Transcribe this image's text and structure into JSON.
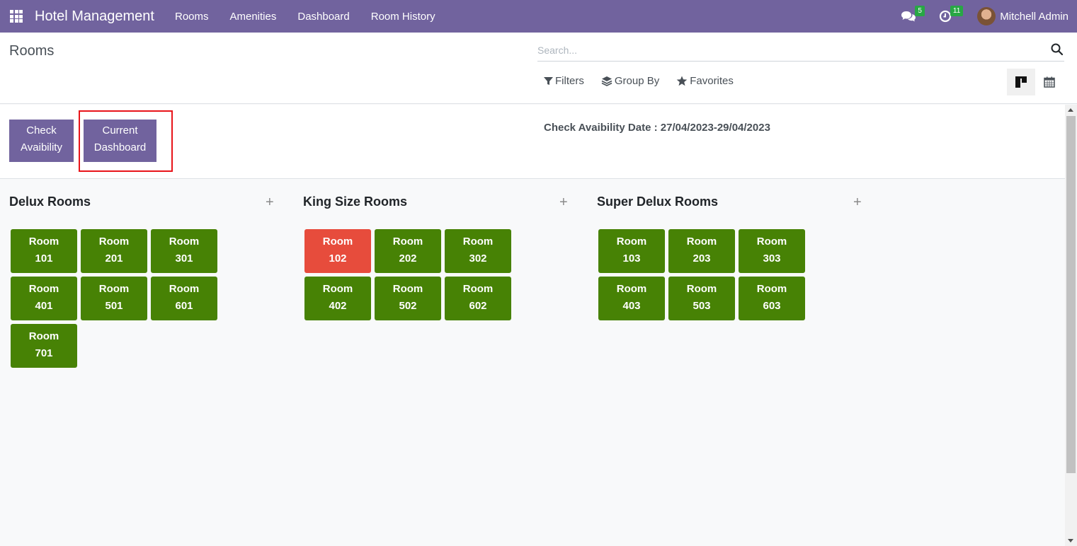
{
  "navbar": {
    "brand": "Hotel Management",
    "menu": [
      "Rooms",
      "Amenities",
      "Dashboard",
      "Room History"
    ],
    "messages_count": "5",
    "activities_count": "11",
    "user_name": "Mitchell Admin"
  },
  "control_panel": {
    "breadcrumb": "Rooms",
    "search_placeholder": "Search...",
    "filters_label": "Filters",
    "group_by_label": "Group By",
    "favorites_label": "Favorites"
  },
  "dashboard": {
    "check_button_line1": "Check",
    "check_button_line2": "Avaibility",
    "current_button_line1": "Current",
    "current_button_line2": "Dashboard",
    "availability_text": "Check Avaibility Date : 27/04/2023-29/04/2023"
  },
  "columns": [
    {
      "title": "Delux Rooms",
      "rooms": [
        {
          "label": "Room",
          "number": "101",
          "status": "available"
        },
        {
          "label": "Room",
          "number": "201",
          "status": "available"
        },
        {
          "label": "Room",
          "number": "301",
          "status": "available"
        },
        {
          "label": "Room",
          "number": "401",
          "status": "available"
        },
        {
          "label": "Room",
          "number": "501",
          "status": "available"
        },
        {
          "label": "Room",
          "number": "601",
          "status": "available"
        },
        {
          "label": "Room",
          "number": "701",
          "status": "available"
        }
      ]
    },
    {
      "title": "King Size Rooms",
      "rooms": [
        {
          "label": "Room",
          "number": "102",
          "status": "booked"
        },
        {
          "label": "Room",
          "number": "202",
          "status": "available"
        },
        {
          "label": "Room",
          "number": "302",
          "status": "available"
        },
        {
          "label": "Room",
          "number": "402",
          "status": "available"
        },
        {
          "label": "Room",
          "number": "502",
          "status": "available"
        },
        {
          "label": "Room",
          "number": "602",
          "status": "available"
        }
      ]
    },
    {
      "title": "Super Delux Rooms",
      "rooms": [
        {
          "label": "Room",
          "number": "103",
          "status": "available"
        },
        {
          "label": "Room",
          "number": "203",
          "status": "available"
        },
        {
          "label": "Room",
          "number": "303",
          "status": "available"
        },
        {
          "label": "Room",
          "number": "403",
          "status": "available"
        },
        {
          "label": "Room",
          "number": "503",
          "status": "available"
        },
        {
          "label": "Room",
          "number": "603",
          "status": "available"
        }
      ]
    }
  ],
  "colors": {
    "navbar": "#71639e",
    "available": "#478205",
    "booked": "#e74c3c",
    "highlight": "#e8141a"
  }
}
